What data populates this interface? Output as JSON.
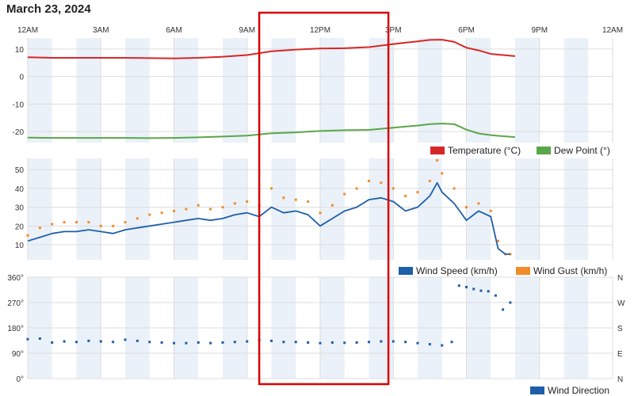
{
  "date_title": "March 23, 2024",
  "colors": {
    "temperature": "#d62728",
    "dew_point": "#5aa64a",
    "wind_speed": "#1f5fa8",
    "wind_gust": "#f28c28",
    "wind_direction": "#1f5fa8",
    "band": "#eaf1f9",
    "grid": "#dddddd",
    "highlight_box": "#d90000"
  },
  "chart_data": [
    {
      "type": "line",
      "x_unit": "hour of day",
      "xlim": [
        0,
        24
      ],
      "x_ticks": [
        0,
        3,
        6,
        9,
        12,
        15,
        18,
        21,
        24
      ],
      "x_tick_labels": [
        "12AM",
        "3AM",
        "6AM",
        "9AM",
        "12PM",
        "3PM",
        "6PM",
        "9PM",
        "12AM"
      ],
      "ylim": [
        -24,
        14
      ],
      "y_ticks": [
        10,
        0,
        -10,
        -20
      ],
      "y_tick_labels": [
        "10",
        "0",
        "-10",
        "-20"
      ],
      "grid": true,
      "legend": "bottom-right",
      "series": [
        {
          "name": "Temperature (°C)",
          "x": [
            0,
            1,
            2,
            3,
            4,
            5,
            6,
            7,
            8,
            9,
            10,
            11,
            12,
            13,
            14,
            15,
            16,
            16.5,
            17,
            17.5,
            18,
            18.5,
            19,
            19.5,
            20
          ],
          "y": [
            7,
            6.8,
            6.8,
            6.8,
            6.8,
            6.7,
            6.6,
            6.8,
            7.2,
            7.8,
            9.2,
            9.8,
            10.2,
            10.3,
            10.7,
            11.8,
            12.8,
            13.3,
            13.4,
            12.6,
            10.5,
            9.5,
            8.2,
            7.8,
            7.4
          ]
        },
        {
          "name": "Dew Point (°)",
          "x": [
            0,
            1,
            2,
            3,
            4,
            5,
            6,
            7,
            8,
            9,
            10,
            11,
            12,
            13,
            14,
            15,
            16,
            16.5,
            17,
            17.5,
            18,
            18.5,
            19,
            19.5,
            20
          ],
          "y": [
            -22.2,
            -22.3,
            -22.3,
            -22.3,
            -22.3,
            -22.4,
            -22.3,
            -22.1,
            -21.8,
            -21.5,
            -20.6,
            -20.3,
            -19.8,
            -19.5,
            -19.4,
            -18.6,
            -17.8,
            -17.3,
            -17.1,
            -17.3,
            -19.3,
            -20.7,
            -21.3,
            -21.7,
            -22.0
          ]
        }
      ]
    },
    {
      "type": "line",
      "x_unit": "hour of day",
      "xlim": [
        0,
        24
      ],
      "ylim": [
        2,
        56
      ],
      "y_ticks": [
        10,
        20,
        30,
        40,
        50
      ],
      "y_tick_labels": [
        "10",
        "20",
        "30",
        "40",
        "50"
      ],
      "grid": true,
      "legend": "bottom-right",
      "series": [
        {
          "name": "Wind Speed (km/h)",
          "x": [
            0,
            0.5,
            1,
            1.5,
            2,
            2.5,
            3,
            3.5,
            4,
            4.5,
            5,
            5.5,
            6,
            6.5,
            7,
            7.5,
            8,
            8.5,
            9,
            9.5,
            10,
            10.5,
            11,
            11.5,
            12,
            12.5,
            13,
            13.5,
            14,
            14.5,
            15,
            15.5,
            16,
            16.5,
            16.8,
            17,
            17.5,
            18,
            18.5,
            19,
            19.3,
            19.6,
            19.8
          ],
          "y": [
            12,
            14,
            16,
            17,
            17,
            18,
            17,
            16,
            18,
            19,
            20,
            21,
            22,
            23,
            24,
            23,
            24,
            26,
            27,
            25,
            30,
            27,
            28,
            26,
            20,
            24,
            28,
            30,
            34,
            35,
            33,
            28,
            30,
            36,
            43,
            38,
            32,
            23,
            28,
            25,
            8,
            5,
            5
          ]
        },
        {
          "name": "Wind Gust (km/h)",
          "x": [
            0,
            0.5,
            1,
            1.5,
            2,
            2.5,
            3,
            3.5,
            4,
            4.5,
            5,
            5.5,
            6,
            6.5,
            7,
            7.5,
            8,
            8.5,
            9,
            9.5,
            10,
            10.5,
            11,
            11.5,
            12,
            12.5,
            13,
            13.5,
            14,
            14.5,
            15,
            15.5,
            16,
            16.5,
            16.8,
            17,
            17.5,
            18,
            18.5,
            19,
            19.3,
            19.6,
            19.8
          ],
          "y": [
            15,
            19,
            21,
            22,
            22,
            22,
            20,
            20,
            22,
            24,
            26,
            27,
            28,
            29,
            31,
            29,
            30,
            32,
            33,
            31,
            40,
            35,
            34,
            33,
            27,
            31,
            37,
            40,
            44,
            43,
            40,
            36,
            38,
            44,
            55,
            48,
            40,
            30,
            32,
            28,
            12,
            5,
            5
          ]
        }
      ]
    },
    {
      "type": "scatter",
      "x_unit": "hour of day",
      "xlim": [
        0,
        24
      ],
      "ylim": [
        0,
        360
      ],
      "y_ticks": [
        360,
        270,
        180,
        90,
        0
      ],
      "y_tick_labels": [
        "360°",
        "270°",
        "180°",
        "90°",
        "0°"
      ],
      "y2_tick_labels": [
        "N",
        "W",
        "S",
        "E",
        "N"
      ],
      "grid": true,
      "legend": "bottom-right",
      "series": [
        {
          "name": "Wind Direction",
          "x": [
            0,
            0.5,
            1,
            1.5,
            2,
            2.5,
            3,
            3.5,
            4,
            4.5,
            5,
            5.5,
            6,
            6.5,
            7,
            7.5,
            8,
            8.5,
            9,
            9.5,
            10,
            10.5,
            11,
            11.5,
            12,
            12.5,
            13,
            13.5,
            14,
            14.5,
            15,
            15.5,
            16,
            16.5,
            17,
            17.4,
            17.7,
            18,
            18.3,
            18.6,
            18.9,
            19.2,
            19.5,
            19.8
          ],
          "y": [
            140,
            142,
            128,
            132,
            130,
            134,
            132,
            130,
            138,
            134,
            130,
            128,
            126,
            126,
            128,
            126,
            128,
            130,
            132,
            136,
            134,
            130,
            130,
            128,
            126,
            128,
            127,
            128,
            130,
            132,
            132,
            130,
            126,
            122,
            118,
            130,
            330,
            325,
            318,
            312,
            310,
            295,
            245,
            270
          ]
        }
      ]
    }
  ],
  "highlight": {
    "x_start_hour": 9.5,
    "x_end_hour": 14.8
  }
}
